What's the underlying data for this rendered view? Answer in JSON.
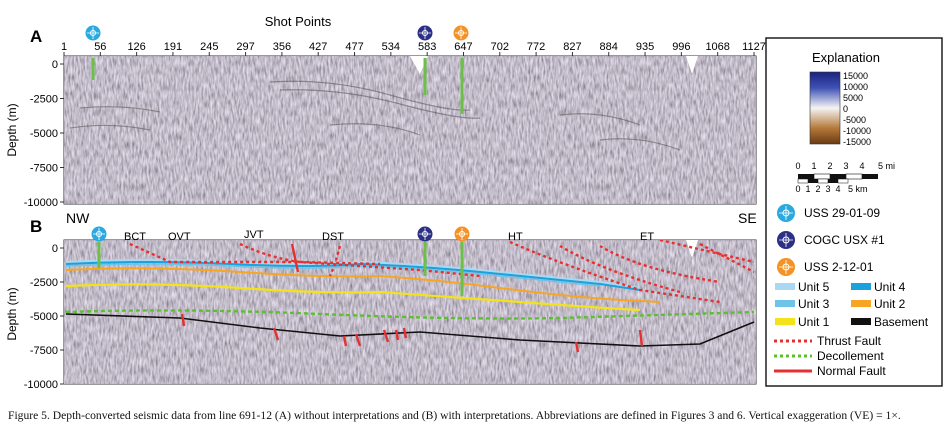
{
  "figure": {
    "top_axis_title": "Shot Points",
    "shot_points": [
      "1",
      "56",
      "126",
      "191",
      "245",
      "297",
      "356",
      "427",
      "477",
      "534",
      "583",
      "647",
      "702",
      "772",
      "827",
      "884",
      "935",
      "996",
      "1068",
      "1127"
    ],
    "panel_a": {
      "label": "A",
      "y_axis_label": "Depth (m)",
      "y_ticks": [
        "0",
        "-2500",
        "-5000",
        "-7500",
        "-10000"
      ]
    },
    "panel_b": {
      "label": "B",
      "y_axis_label": "Depth (m)",
      "y_ticks": [
        "0",
        "-2500",
        "-5000",
        "-7500",
        "-10000"
      ]
    },
    "direction_left": "NW",
    "direction_right": "SE",
    "fault_labels": [
      "BCT",
      "OVT",
      "JVT",
      "DST",
      "HT",
      "ET"
    ],
    "well_colors": {
      "uss_29": "#29a9e0",
      "cogc": "#2b2f86",
      "uss_2": "#f39325"
    }
  },
  "explanation": {
    "title": "Explanation",
    "colorbar_labels": [
      "15000",
      "10000",
      "5000",
      "0",
      "-5000",
      "-10000",
      "-15000"
    ],
    "scale_miles": [
      "0",
      "1",
      "2",
      "3",
      "4",
      "5 mi"
    ],
    "scale_km": [
      "0",
      "1",
      "2",
      "3",
      "4",
      "5 km"
    ],
    "wells": [
      {
        "label": "USS 29-01-09",
        "color": "#29a9e0"
      },
      {
        "label": "COGC USX #1",
        "color": "#2b2f86"
      },
      {
        "label": "USS 2-12-01",
        "color": "#f39325"
      }
    ],
    "units": [
      {
        "label": "Unit 5",
        "color": "#a9d8f2"
      },
      {
        "label": "Unit 4",
        "color": "#1ba1db"
      },
      {
        "label": "Unit 3",
        "color": "#6ec4e8"
      },
      {
        "label": "Unit 2",
        "color": "#f6a623"
      },
      {
        "label": "Unit 1",
        "color": "#f4e21a"
      },
      {
        "label": "Basement",
        "color": "#111111"
      }
    ],
    "lines": [
      {
        "label": "Thrust Fault",
        "color": "#e63030"
      },
      {
        "label": "Decollement",
        "color": "#5cc02e"
      },
      {
        "label": "Normal Fault",
        "color": "#e63030"
      }
    ]
  },
  "caption": "Figure 5. Depth-converted seismic data from line 691-12 (A) without interpretations and (B) with interpretations. Abbreviations are defined in Figures 3 and 6. Vertical exaggeration (VE) = 1×."
}
